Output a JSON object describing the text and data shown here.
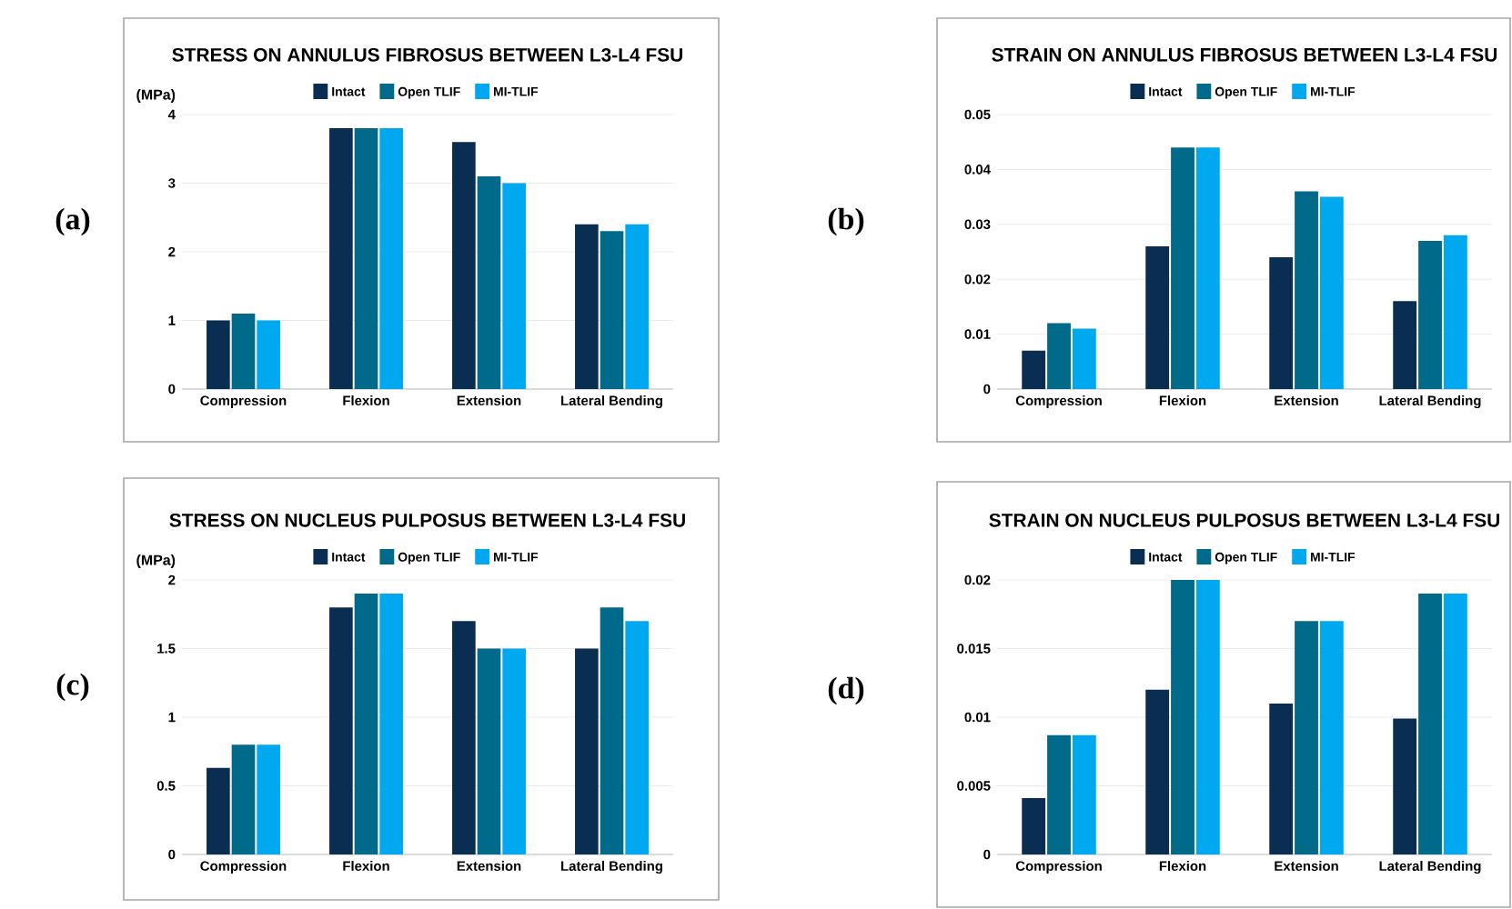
{
  "chart_data": [
    {
      "type": "bar",
      "title": "STRESS ON ANNULUS FIBROSUS BETWEEN L3-L4 FSU",
      "ylabel": "(MPa)",
      "annotations": [
        "(a)"
      ],
      "categories": [
        "Compression",
        "Flexion",
        "Extension",
        "Lateral Bending"
      ],
      "series": [
        {
          "name": "Intact",
          "color": "#0a2d52",
          "values": [
            1.0,
            3.8,
            3.6,
            2.4
          ]
        },
        {
          "name": "Open TLIF",
          "color": "#006a8a",
          "values": [
            1.1,
            3.8,
            3.1,
            2.3
          ]
        },
        {
          "name": "MI-TLIF",
          "color": "#00a8f0",
          "values": [
            1.0,
            3.8,
            3.0,
            2.4
          ]
        }
      ],
      "ylim": [
        0,
        4
      ],
      "yticks": [
        0,
        1,
        2,
        3,
        4
      ],
      "grid": "y",
      "legend": "top"
    },
    {
      "type": "bar",
      "title": "STRAIN ON ANNULUS FIBROSUS BETWEEN L3-L4 FSU",
      "annotations": [
        "(b)"
      ],
      "categories": [
        "Compression",
        "Flexion",
        "Extension",
        "Lateral Bending"
      ],
      "series": [
        {
          "name": "Intact",
          "color": "#0a2d52",
          "values": [
            0.007,
            0.026,
            0.024,
            0.016
          ]
        },
        {
          "name": "Open TLIF",
          "color": "#006a8a",
          "values": [
            0.012,
            0.044,
            0.036,
            0.027
          ]
        },
        {
          "name": "MI-TLIF",
          "color": "#00a8f0",
          "values": [
            0.011,
            0.044,
            0.035,
            0.028
          ]
        }
      ],
      "ylim": [
        0,
        0.05
      ],
      "yticks": [
        0,
        0.01,
        0.02,
        0.03,
        0.04,
        0.05
      ],
      "grid": "y",
      "legend": "top"
    },
    {
      "type": "bar",
      "title": "STRESS ON NUCLEUS PULPOSUS BETWEEN L3-L4 FSU",
      "ylabel": "(MPa)",
      "annotations": [
        "(c)"
      ],
      "categories": [
        "Compression",
        "Flexion",
        "Extension",
        "Lateral Bending"
      ],
      "series": [
        {
          "name": "Intact",
          "color": "#0a2d52",
          "values": [
            0.63,
            1.8,
            1.7,
            1.5
          ]
        },
        {
          "name": "Open TLIF",
          "color": "#006a8a",
          "values": [
            0.8,
            1.9,
            1.5,
            1.8
          ]
        },
        {
          "name": "MI-TLIF",
          "color": "#00a8f0",
          "values": [
            0.8,
            1.9,
            1.5,
            1.7
          ]
        }
      ],
      "ylim": [
        0,
        2
      ],
      "yticks": [
        0,
        0.5,
        1,
        1.5,
        2
      ],
      "grid": "y",
      "legend": "top"
    },
    {
      "type": "bar",
      "title": "STRAIN ON NUCLEUS PULPOSUS BETWEEN L3-L4 FSU",
      "annotations": [
        "(d)"
      ],
      "categories": [
        "Compression",
        "Flexion",
        "Extension",
        "Lateral Bending"
      ],
      "series": [
        {
          "name": "Intact",
          "color": "#0a2d52",
          "values": [
            0.0041,
            0.012,
            0.011,
            0.0099
          ]
        },
        {
          "name": "Open TLIF",
          "color": "#006a8a",
          "values": [
            0.0087,
            0.02,
            0.017,
            0.019
          ]
        },
        {
          "name": "MI-TLIF",
          "color": "#00a8f0",
          "values": [
            0.0087,
            0.02,
            0.017,
            0.019
          ]
        }
      ],
      "ylim": [
        0,
        0.02
      ],
      "yticks": [
        0,
        0.005,
        0.01,
        0.015,
        0.02
      ],
      "grid": "y",
      "legend": "top"
    }
  ]
}
